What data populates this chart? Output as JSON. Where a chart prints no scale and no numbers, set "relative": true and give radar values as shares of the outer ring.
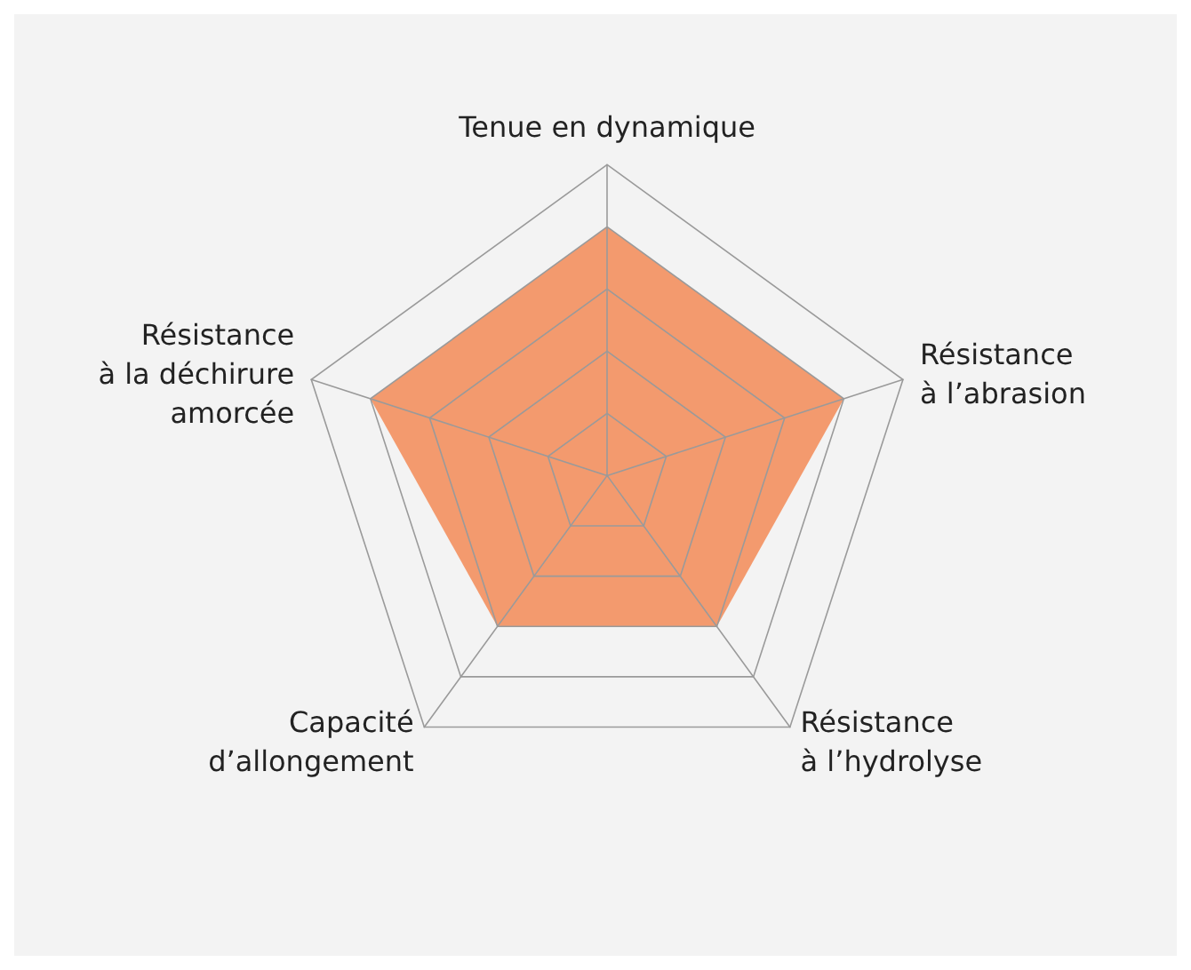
{
  "chart_data": {
    "type": "radar",
    "relative": true,
    "categories": [
      "Tenue en dynamique",
      "Résistance\nà l’abrasion",
      "Résistance\nà l’hydrolyse",
      "Capacité\nd’allongement",
      "Résistance\nà la déchirure\namorcée"
    ],
    "series": [
      {
        "color": "#f39a6e",
        "values": [
          0.8,
          0.8,
          0.6,
          0.6,
          0.8
        ]
      }
    ],
    "grid": true
  }
}
